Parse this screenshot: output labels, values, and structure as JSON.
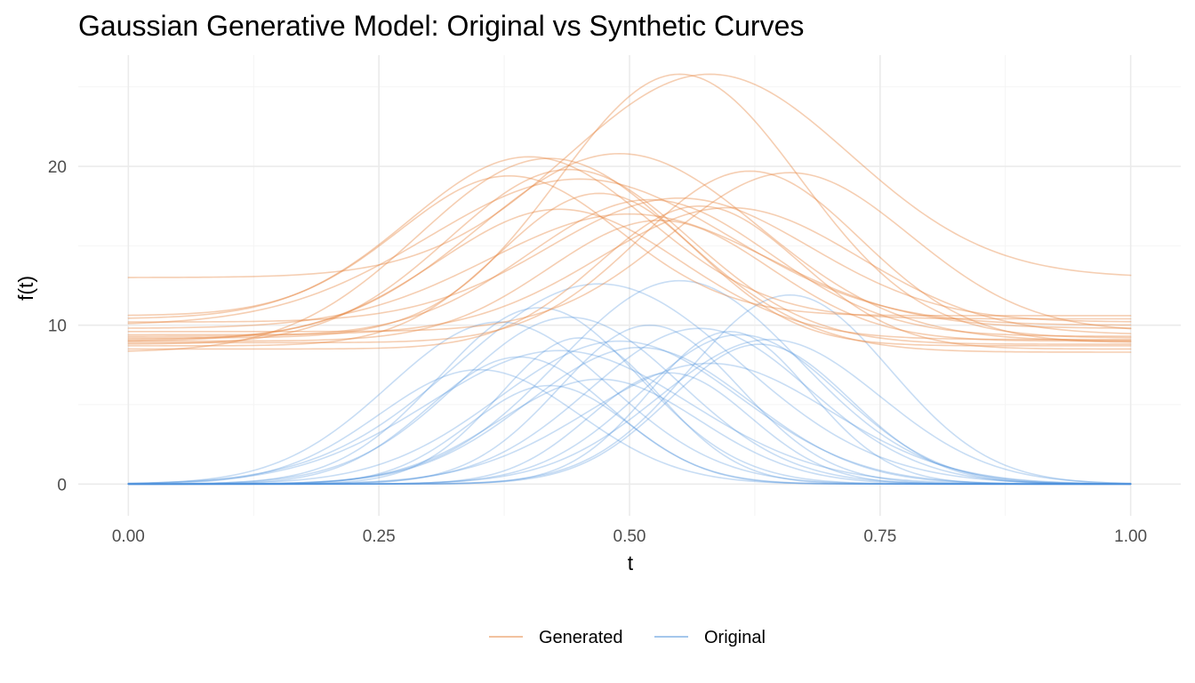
{
  "chart_data": {
    "type": "line",
    "title": "Gaussian Generative Model: Original vs Synthetic Curves",
    "xlabel": "t",
    "ylabel": "f(t)",
    "xlim": [
      -0.05,
      1.05
    ],
    "ylim": [
      -2.0,
      27.0
    ],
    "x_ticks": [
      0.0,
      0.25,
      0.5,
      0.75,
      1.0
    ],
    "x_tick_labels": [
      "0.00",
      "0.25",
      "0.50",
      "0.75",
      "1.00"
    ],
    "x_minor_ticks": [
      0.125,
      0.375,
      0.625,
      0.875
    ],
    "y_ticks": [
      0,
      10,
      20
    ],
    "y_tick_labels": [
      "0",
      "10",
      "20"
    ],
    "y_minor_ticks": [
      5,
      15,
      25
    ],
    "grid": true,
    "legend": {
      "position": "bottom",
      "entries": [
        {
          "name": "Generated",
          "color": "#E6853F"
        },
        {
          "name": "Original",
          "color": "#4A90D9"
        }
      ]
    },
    "curve_model": "baseline + amplitude * exp(-(t - center)^2 / (2 * width^2))",
    "series": [
      {
        "name": "Original",
        "color": "#4A90D9",
        "opacity": 0.3,
        "curves": [
          {
            "baseline": 0.0,
            "amplitude": 12.6,
            "center": 0.47,
            "width": 0.14
          },
          {
            "baseline": 0.0,
            "amplitude": 12.8,
            "center": 0.55,
            "width": 0.12
          },
          {
            "baseline": 0.0,
            "amplitude": 11.9,
            "center": 0.66,
            "width": 0.1
          },
          {
            "baseline": 0.0,
            "amplitude": 11.1,
            "center": 0.41,
            "width": 0.1
          },
          {
            "baseline": 0.0,
            "amplitude": 10.2,
            "center": 0.37,
            "width": 0.11
          },
          {
            "baseline": 0.0,
            "amplitude": 10.0,
            "center": 0.52,
            "width": 0.09
          },
          {
            "baseline": 0.0,
            "amplitude": 9.8,
            "center": 0.57,
            "width": 0.11
          },
          {
            "baseline": 0.0,
            "amplitude": 9.4,
            "center": 0.61,
            "width": 0.1
          },
          {
            "baseline": 0.0,
            "amplitude": 9.2,
            "center": 0.45,
            "width": 0.08
          },
          {
            "baseline": 0.0,
            "amplitude": 9.0,
            "center": 0.49,
            "width": 0.12
          },
          {
            "baseline": 0.0,
            "amplitude": 8.8,
            "center": 0.63,
            "width": 0.09
          },
          {
            "baseline": 0.0,
            "amplitude": 8.4,
            "center": 0.43,
            "width": 0.13
          },
          {
            "baseline": 0.0,
            "amplitude": 8.0,
            "center": 0.39,
            "width": 0.09
          },
          {
            "baseline": 0.0,
            "amplitude": 7.6,
            "center": 0.58,
            "width": 0.12
          },
          {
            "baseline": 0.0,
            "amplitude": 7.2,
            "center": 0.35,
            "width": 0.1
          },
          {
            "baseline": 0.0,
            "amplitude": 7.0,
            "center": 0.54,
            "width": 0.08
          },
          {
            "baseline": 0.0,
            "amplitude": 6.6,
            "center": 0.47,
            "width": 0.1
          },
          {
            "baseline": 0.0,
            "amplitude": 9.6,
            "center": 0.6,
            "width": 0.08
          },
          {
            "baseline": 0.0,
            "amplitude": 8.6,
            "center": 0.51,
            "width": 0.11
          },
          {
            "baseline": 0.0,
            "amplitude": 10.5,
            "center": 0.44,
            "width": 0.11
          },
          {
            "baseline": 0.0,
            "amplitude": 6.2,
            "center": 0.42,
            "width": 0.08
          },
          {
            "baseline": 0.0,
            "amplitude": 9.1,
            "center": 0.64,
            "width": 0.11
          }
        ]
      },
      {
        "name": "Generated",
        "color": "#E6853F",
        "opacity": 0.4,
        "curves": [
          {
            "baseline": 13.0,
            "amplitude": 12.8,
            "center": 0.58,
            "width": 0.14
          },
          {
            "baseline": 9.2,
            "amplitude": 16.6,
            "center": 0.55,
            "width": 0.12
          },
          {
            "baseline": 9.0,
            "amplitude": 11.8,
            "center": 0.49,
            "width": 0.14
          },
          {
            "baseline": 10.4,
            "amplitude": 10.2,
            "center": 0.4,
            "width": 0.12
          },
          {
            "baseline": 9.6,
            "amplitude": 10.0,
            "center": 0.66,
            "width": 0.12
          },
          {
            "baseline": 8.9,
            "amplitude": 10.8,
            "center": 0.62,
            "width": 0.11
          },
          {
            "baseline": 8.3,
            "amplitude": 12.2,
            "center": 0.42,
            "width": 0.13
          },
          {
            "baseline": 10.0,
            "amplitude": 9.2,
            "center": 0.45,
            "width": 0.15
          },
          {
            "baseline": 9.3,
            "amplitude": 8.6,
            "center": 0.52,
            "width": 0.12
          },
          {
            "baseline": 8.7,
            "amplitude": 9.6,
            "center": 0.47,
            "width": 0.1
          },
          {
            "baseline": 10.2,
            "amplitude": 7.8,
            "center": 0.55,
            "width": 0.13
          },
          {
            "baseline": 9.1,
            "amplitude": 8.2,
            "center": 0.43,
            "width": 0.12
          },
          {
            "baseline": 8.5,
            "amplitude": 9.0,
            "center": 0.57,
            "width": 0.1
          },
          {
            "baseline": 10.6,
            "amplitude": 8.8,
            "center": 0.38,
            "width": 0.11
          },
          {
            "baseline": 9.4,
            "amplitude": 8.0,
            "center": 0.6,
            "width": 0.13
          },
          {
            "baseline": 8.8,
            "amplitude": 11.0,
            "center": 0.44,
            "width": 0.12
          },
          {
            "baseline": 9.8,
            "amplitude": 7.2,
            "center": 0.5,
            "width": 0.14
          },
          {
            "baseline": 9.0,
            "amplitude": 7.6,
            "center": 0.53,
            "width": 0.11
          }
        ]
      }
    ]
  }
}
